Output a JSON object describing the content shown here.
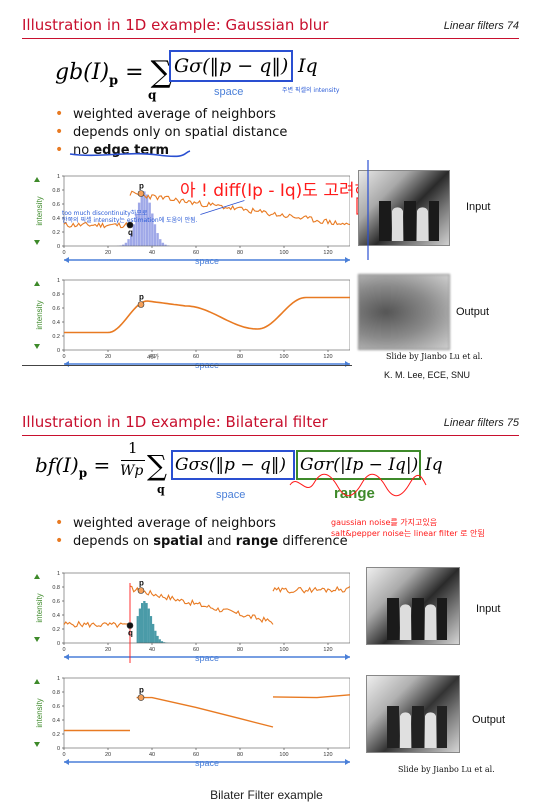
{
  "slide1": {
    "title": "Illustration in 1D example: Gaussian blur",
    "page_number": "Linear filters 74",
    "formula_lhs": "gb(I)",
    "formula_sub": "p",
    "formula_kernel": "Gσ(‖p − q‖)",
    "formula_tail": "Iq",
    "space_label": "space",
    "korean_intensity_note": "주변 픽셀의 intensity",
    "bullets": [
      "weighted average of neighbors",
      "depends only on spatial distance",
      "no edge term"
    ],
    "bullet3_prefix": "no ",
    "bullet3_bold": "edge term",
    "annotation_big": "아 ! diff(Ip - Iq)도 고려해야겠구나 !",
    "annotation_small_1": "too much discontinuity하므로",
    "annotation_small_2": "한쪽의 픽셀 intensity는 estimation에 도움이 안됨.",
    "input_label": "Input",
    "output_label": "Output",
    "axis_ylabel": "intensity",
    "axis_xlabel": "space",
    "point_p": "p",
    "point_q": "q",
    "handwritten_40": "40가",
    "credit": "Slide by Jianbo Lu et al.",
    "author": "K. M. Lee, ECE, SNU"
  },
  "slide2": {
    "title": "Illustration in 1D example: Bilateral filter",
    "page_number": "Linear filters 75",
    "formula_lhs": "bf(I)",
    "formula_sub": "p",
    "formula_frac_num": "1",
    "formula_frac_den": "Wp",
    "formula_kernel_space": "Gσs(‖p − q‖)",
    "formula_kernel_range": "Gσr(|Ip − Iq|)",
    "formula_tail": "Iq",
    "space_label": "space",
    "range_label": "range",
    "bullets": [
      "weighted average of neighbors",
      "depends on spatial and range difference"
    ],
    "bullet2_a": "depends on ",
    "bullet2_b": "spatial",
    "bullet2_c": " and ",
    "bullet2_d": "range",
    "bullet2_e": " difference",
    "note_1": "gaussian noise를 가지고있음",
    "note_2": "salt&pepper noise는 linear filter 로 안됨",
    "input_label": "Input",
    "output_label": "Output",
    "axis_ylabel": "intensity",
    "axis_xlabel": "space",
    "point_p": "p",
    "point_q": "q",
    "credit": "Slide by Jianbo Lu et al."
  },
  "caption": "Bilater Filter example",
  "chart_data": [
    {
      "type": "line",
      "name": "gaussian-blur-input",
      "x": [
        0,
        30,
        30,
        130
      ],
      "ylim": [
        0,
        1
      ],
      "xlim": [
        0,
        130
      ],
      "yticks": [
        0,
        0.2,
        0.4,
        0.6,
        0.8,
        1
      ],
      "xticks": [
        0,
        20,
        40,
        60,
        80,
        100,
        120
      ],
      "series": [
        {
          "name": "",
          "values": [
            0.3,
            0.3,
            0.75,
            0.3
          ]
        }
      ]
    },
    {
      "type": "line",
      "name": "gaussian-blur-output",
      "x": [
        0,
        20,
        30,
        40,
        60,
        80,
        90,
        110,
        130
      ],
      "ylim": [
        0,
        1
      ],
      "xlim": [
        0,
        130
      ],
      "series": [
        {
          "name": "",
          "values": [
            0.25,
            0.25,
            0.4,
            0.7,
            0.6,
            0.3,
            0.45,
            0.75,
            0.75
          ]
        }
      ]
    },
    {
      "type": "line",
      "name": "bilateral-input",
      "x": [
        0,
        30,
        30,
        95,
        95,
        130
      ],
      "ylim": [
        0,
        1
      ],
      "xlim": [
        0,
        130
      ],
      "series": [
        {
          "name": "",
          "values": [
            0.25,
            0.25,
            0.75,
            0.3,
            0.75,
            0.75
          ]
        }
      ]
    },
    {
      "type": "line",
      "name": "bilateral-output",
      "x": [
        0,
        30,
        35,
        95,
        95,
        130
      ],
      "ylim": [
        0,
        1
      ],
      "xlim": [
        0,
        130
      ],
      "series": [
        {
          "name": "",
          "values": [
            0.25,
            0.25,
            0.72,
            0.3,
            0.73,
            0.75
          ]
        }
      ]
    }
  ]
}
